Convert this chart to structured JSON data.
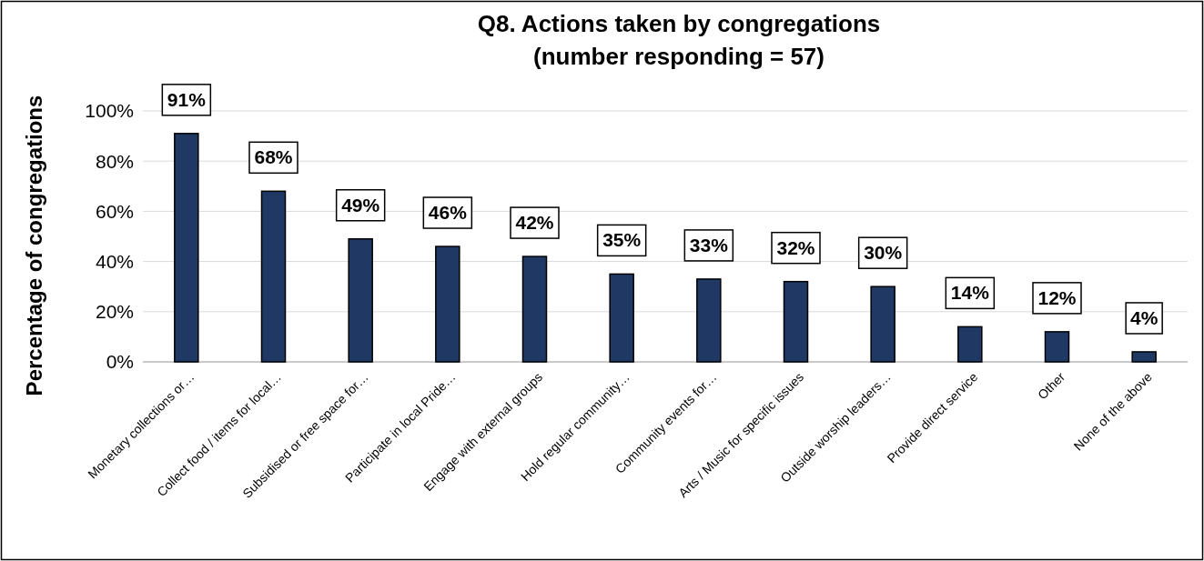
{
  "chart_data": {
    "type": "bar",
    "title": "Q8. Actions taken by congregations\n(number responding = 57)",
    "ylabel": "Percentage of congregations",
    "categories": [
      "Monetary collections or…",
      "Collect food / items for local…",
      "Subsidised or free space for…",
      "Participate in local Pride…",
      "Engage with external groups",
      "Hold regular community…",
      "Community events for…",
      "Arts / Music for specific issues",
      "Outside worship leaders…",
      "Provide direct service",
      "Other",
      "None of the above"
    ],
    "values": [
      91,
      68,
      49,
      46,
      42,
      35,
      33,
      32,
      30,
      14,
      12,
      4
    ],
    "value_labels": [
      "91%",
      "68%",
      "49%",
      "46%",
      "42%",
      "35%",
      "33%",
      "32%",
      "30%",
      "14%",
      "12%",
      "4%"
    ],
    "color": "#1f3864",
    "ylim": [
      0,
      100
    ],
    "yticks": [
      {
        "value": 0,
        "label": "0%"
      },
      {
        "value": 20,
        "label": "20%"
      },
      {
        "value": 40,
        "label": "40%"
      },
      {
        "value": 60,
        "label": "60%"
      },
      {
        "value": 80,
        "label": "80%"
      },
      {
        "value": 100,
        "label": "100%"
      }
    ],
    "grid": "y"
  }
}
